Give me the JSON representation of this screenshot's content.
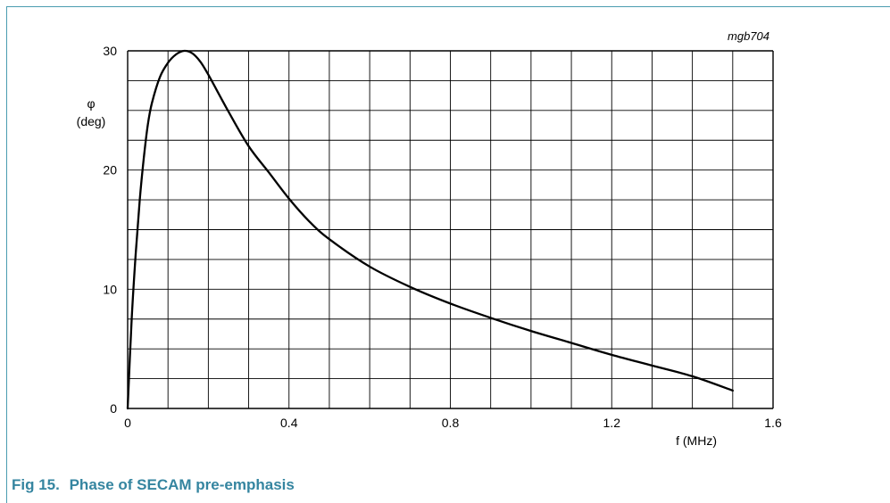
{
  "figure": {
    "number": "Fig 15.",
    "title": "Phase of SECAM pre-emphasis"
  },
  "chart_data": {
    "type": "line",
    "reference_code": "mgb704",
    "ylabel_symbol": "φ",
    "ylabel_unit": "(deg)",
    "xlabel": "f (MHz)",
    "xlim": [
      0,
      1.6
    ],
    "ylim": [
      0,
      30
    ],
    "x_ticks": [
      "0",
      "0.4",
      "0.8",
      "1.2",
      "1.6"
    ],
    "y_ticks": [
      "0",
      "10",
      "20",
      "30"
    ],
    "grid": true,
    "series": [
      {
        "x": [
          0,
          0.01,
          0.02,
          0.03,
          0.04,
          0.05,
          0.06,
          0.08,
          0.1,
          0.12,
          0.14,
          0.16,
          0.18,
          0.2,
          0.25,
          0.3,
          0.35,
          0.4,
          0.45,
          0.5,
          0.6,
          0.7,
          0.8,
          0.9,
          1.0,
          1.1,
          1.2,
          1.3,
          1.4,
          1.5
        ],
        "y": [
          0,
          7.5,
          13,
          17.5,
          21,
          23.8,
          25.6,
          27.8,
          29.0,
          29.7,
          30.0,
          29.8,
          29.1,
          28.0,
          24.9,
          22.0,
          19.8,
          17.6,
          15.7,
          14.2,
          11.9,
          10.2,
          8.8,
          7.6,
          6.5,
          5.5,
          4.5,
          3.6,
          2.7,
          1.5
        ]
      }
    ],
    "colors": {
      "line": "#000000",
      "grid": "#000000",
      "caption": "#3585a0",
      "frame": "#4a9cb0"
    }
  }
}
